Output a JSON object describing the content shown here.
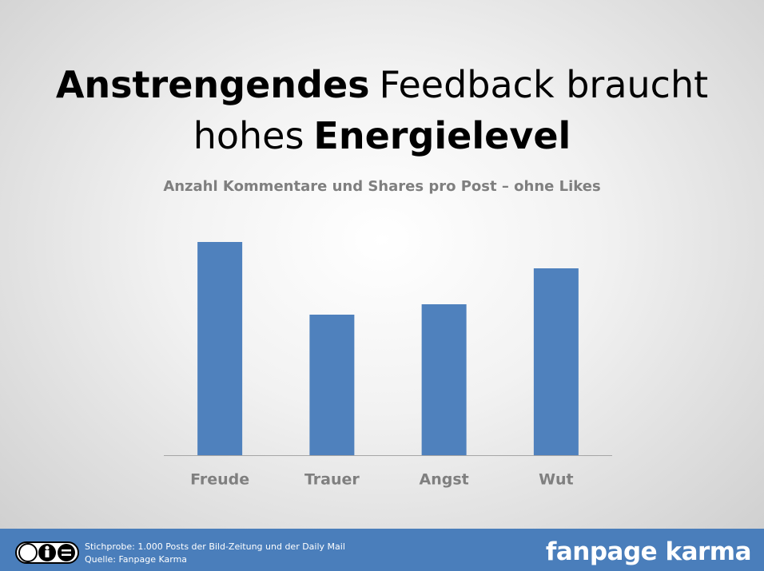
{
  "chart_data": {
    "type": "bar",
    "title_parts": [
      "Anstrengendes",
      "Feedback braucht",
      "hohes",
      "Energielevel"
    ],
    "subtitle": "Anzahl Kommentare und Shares pro Post – ohne Likes",
    "categories": [
      "Freude",
      "Trauer",
      "Angst",
      "Wut"
    ],
    "values": [
      267,
      176,
      189,
      234
    ],
    "color": "#4f81bd"
  },
  "footer": {
    "sample": "Stichprobe: 1.000 Posts der Bild-Zeitung und der Daily Mail",
    "source": "Quelle: Fanpage Karma",
    "logo": "fanpage karma"
  }
}
